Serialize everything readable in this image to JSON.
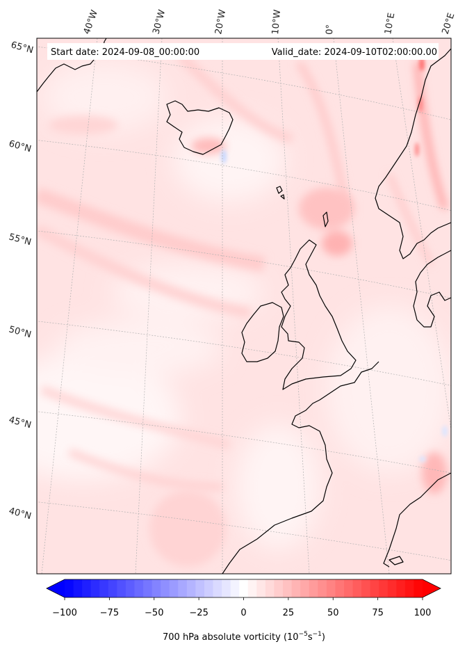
{
  "map": {
    "start_label": "Start date: 2024-09-08_00:00:00",
    "valid_label": "Valid_date: 2024-09-10T02:00:00.00",
    "projection": "conic",
    "lon_labels": [
      "40°W",
      "30°W",
      "20°W",
      "10°W",
      "0°",
      "10°E",
      "20°E"
    ],
    "lat_labels": [
      "65°N",
      "60°N",
      "55°N",
      "50°N",
      "45°N",
      "40°N"
    ],
    "land_outline_color": "#000000",
    "gridline_color": "#b0b0b0"
  },
  "colorbar": {
    "title_main": "700 hPa absolute vorticity (10",
    "title_exp1": "−5",
    "title_mid": "s",
    "title_exp2": "−1",
    "title_end": ")",
    "min": -100,
    "max": 100,
    "ticks": [
      "−100",
      "−75",
      "−50",
      "−25",
      "0",
      "25",
      "50",
      "75",
      "100"
    ],
    "tick_values": [
      -100,
      -75,
      -50,
      -25,
      0,
      25,
      50,
      75,
      100
    ],
    "levels": 41,
    "extend": "both",
    "cmap": "bwr",
    "low_color": "#0000ff",
    "mid_color": "#ffffff",
    "high_color": "#ff0000"
  }
}
